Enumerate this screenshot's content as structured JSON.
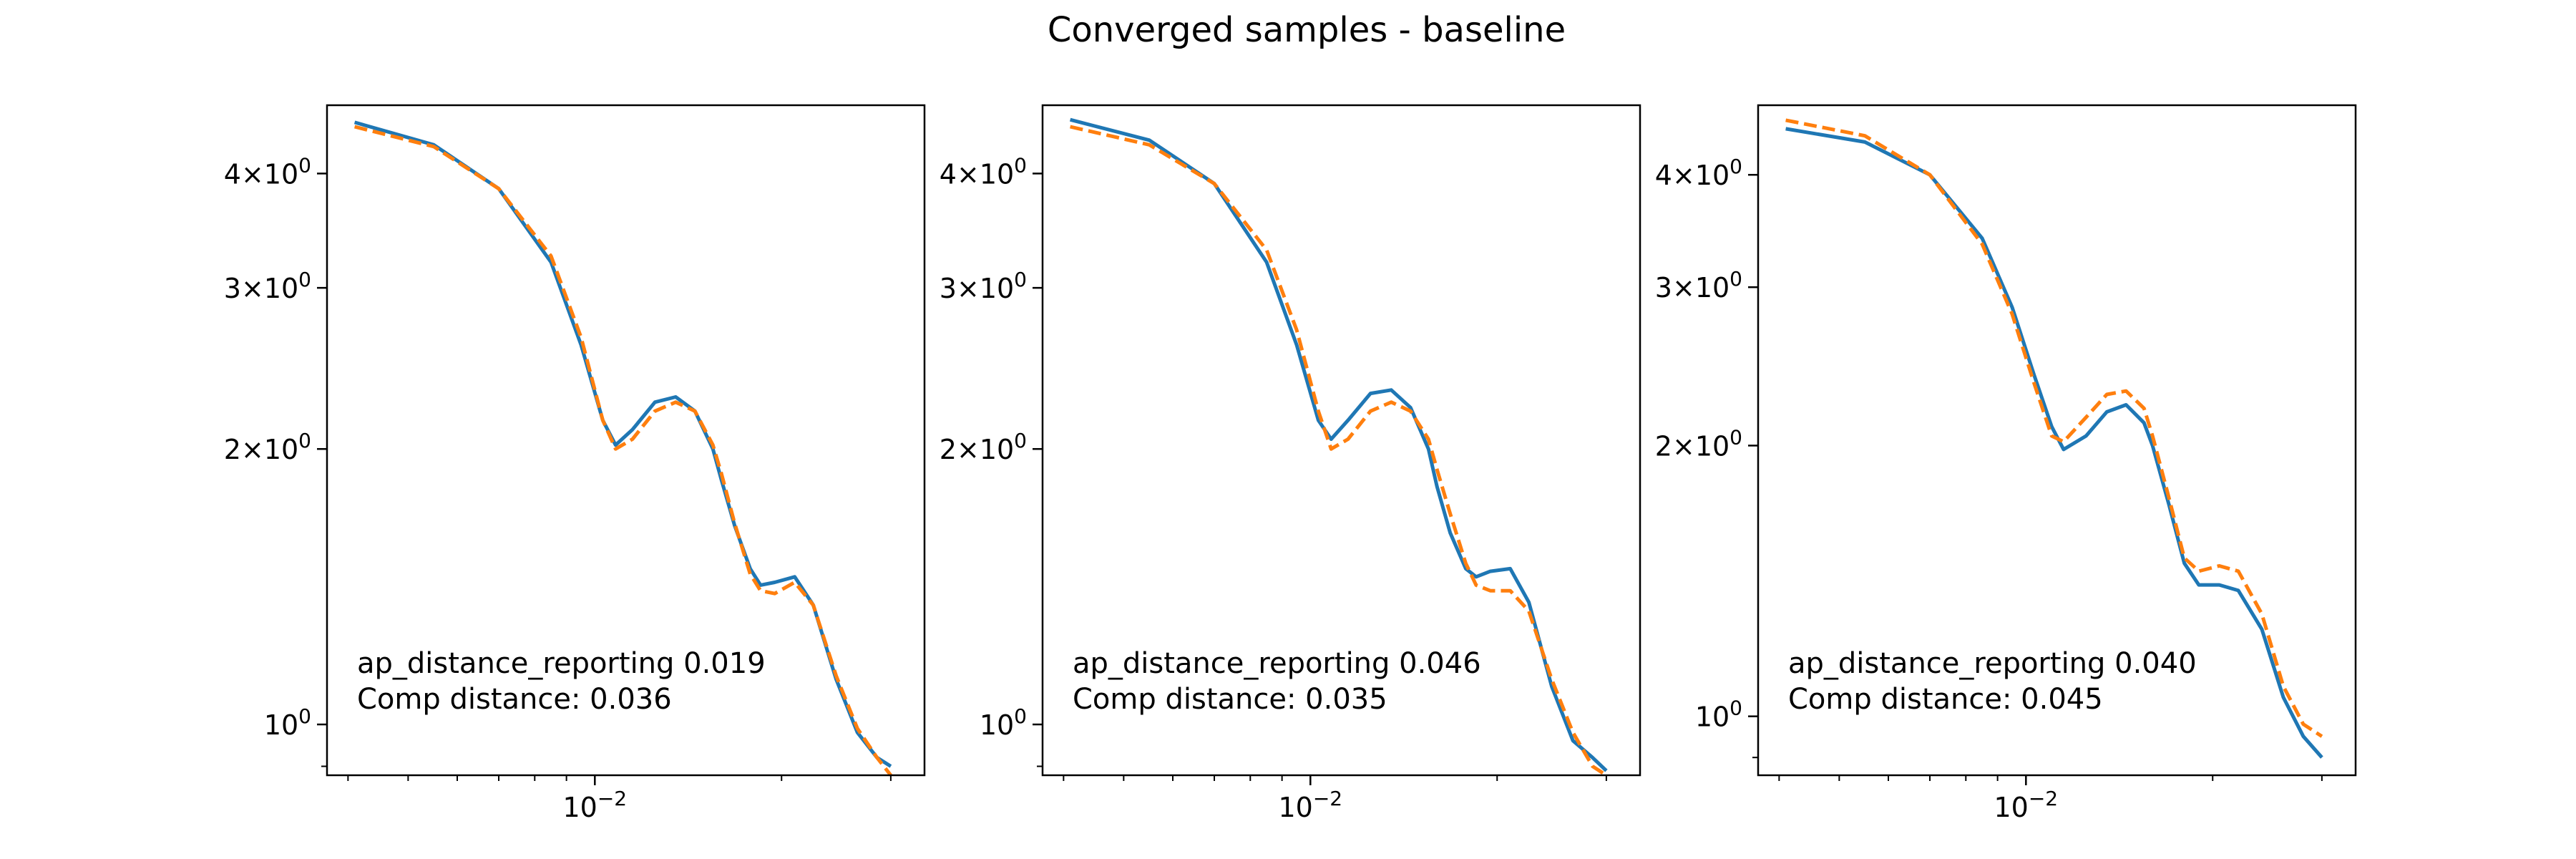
{
  "figure": {
    "suptitle": "Converged samples - baseline"
  },
  "colors": {
    "series_solid": "#1f77b4",
    "series_dashed": "#ff7f0e",
    "axes": "#000000",
    "background": "#ffffff"
  },
  "chart_data": [
    {
      "type": "line",
      "xscale": "log",
      "yscale": "log",
      "xlim": [
        0.0037,
        0.034
      ],
      "ylim": [
        0.88,
        4.75
      ],
      "xtick_labels": [
        {
          "value": 0.01,
          "base": "10",
          "exp": "−2"
        }
      ],
      "ytick_labels": [
        {
          "value": 4,
          "mant": "4",
          "base": "10",
          "exp": "0"
        },
        {
          "value": 3,
          "mant": "3",
          "base": "10",
          "exp": "0"
        },
        {
          "value": 2,
          "mant": "2",
          "base": "10",
          "exp": "0"
        },
        {
          "value": 1,
          "mant": "",
          "base": "10",
          "exp": "0"
        }
      ],
      "annotation": [
        "ap_distance_reporting 0.019",
        "Comp distance: 0.036"
      ],
      "series": [
        {
          "style": "solid",
          "x": [
            0.0041,
            0.0055,
            0.007,
            0.0085,
            0.0095,
            0.0103,
            0.0108,
            0.0115,
            0.0125,
            0.0135,
            0.0145,
            0.0155,
            0.016,
            0.0168,
            0.0178,
            0.0185,
            0.0195,
            0.021,
            0.0225,
            0.0245,
            0.0265,
            0.0285,
            0.03
          ],
          "y": [
            4.55,
            4.3,
            3.85,
            3.2,
            2.6,
            2.15,
            2.02,
            2.1,
            2.25,
            2.28,
            2.2,
            2.0,
            1.85,
            1.65,
            1.48,
            1.42,
            1.43,
            1.45,
            1.35,
            1.12,
            0.98,
            0.92,
            0.9
          ]
        },
        {
          "style": "dashed",
          "x": [
            0.0041,
            0.0055,
            0.007,
            0.0085,
            0.0095,
            0.0103,
            0.0108,
            0.0115,
            0.0125,
            0.0135,
            0.0145,
            0.0155,
            0.016,
            0.0168,
            0.0178,
            0.0185,
            0.0195,
            0.021,
            0.0225,
            0.0245,
            0.0265,
            0.0285,
            0.03
          ],
          "y": [
            4.5,
            4.28,
            3.85,
            3.25,
            2.65,
            2.15,
            2.0,
            2.05,
            2.2,
            2.25,
            2.2,
            2.02,
            1.88,
            1.66,
            1.46,
            1.4,
            1.39,
            1.43,
            1.35,
            1.13,
            0.99,
            0.92,
            0.88
          ]
        }
      ]
    },
    {
      "type": "line",
      "xscale": "log",
      "yscale": "log",
      "xlim": [
        0.0037,
        0.034
      ],
      "ylim": [
        0.88,
        4.75
      ],
      "xtick_labels": [
        {
          "value": 0.01,
          "base": "10",
          "exp": "−2"
        }
      ],
      "ytick_labels": [
        {
          "value": 4,
          "mant": "4",
          "base": "10",
          "exp": "0"
        },
        {
          "value": 3,
          "mant": "3",
          "base": "10",
          "exp": "0"
        },
        {
          "value": 2,
          "mant": "2",
          "base": "10",
          "exp": "0"
        },
        {
          "value": 1,
          "mant": "",
          "base": "10",
          "exp": "0"
        }
      ],
      "annotation": [
        "ap_distance_reporting 0.046",
        "Comp distance: 0.035"
      ],
      "series": [
        {
          "style": "solid",
          "x": [
            0.0041,
            0.0055,
            0.007,
            0.0085,
            0.0095,
            0.0103,
            0.0108,
            0.0115,
            0.0125,
            0.0135,
            0.0145,
            0.0155,
            0.016,
            0.0168,
            0.0178,
            0.0185,
            0.0195,
            0.021,
            0.0225,
            0.0245,
            0.0265,
            0.0285,
            0.03
          ],
          "y": [
            4.58,
            4.35,
            3.9,
            3.2,
            2.6,
            2.15,
            2.05,
            2.15,
            2.3,
            2.32,
            2.22,
            2.0,
            1.82,
            1.62,
            1.48,
            1.45,
            1.47,
            1.48,
            1.36,
            1.1,
            0.96,
            0.92,
            0.89
          ]
        },
        {
          "style": "dashed",
          "x": [
            0.0041,
            0.0055,
            0.007,
            0.0085,
            0.0095,
            0.0103,
            0.0108,
            0.0115,
            0.0125,
            0.0135,
            0.0145,
            0.0155,
            0.016,
            0.0168,
            0.0178,
            0.0185,
            0.0195,
            0.021,
            0.0225,
            0.0245,
            0.0265,
            0.0285,
            0.03
          ],
          "y": [
            4.5,
            4.3,
            3.9,
            3.3,
            2.7,
            2.2,
            2.0,
            2.05,
            2.2,
            2.25,
            2.2,
            2.05,
            1.9,
            1.7,
            1.5,
            1.42,
            1.4,
            1.4,
            1.33,
            1.12,
            0.98,
            0.9,
            0.88
          ]
        }
      ]
    },
    {
      "type": "line",
      "xscale": "log",
      "yscale": "log",
      "xlim": [
        0.0037,
        0.034
      ],
      "ylim": [
        0.86,
        4.78
      ],
      "xtick_labels": [
        {
          "value": 0.01,
          "base": "10",
          "exp": "−2"
        }
      ],
      "ytick_labels": [
        {
          "value": 4,
          "mant": "4",
          "base": "10",
          "exp": "0"
        },
        {
          "value": 3,
          "mant": "3",
          "base": "10",
          "exp": "0"
        },
        {
          "value": 2,
          "mant": "2",
          "base": "10",
          "exp": "0"
        },
        {
          "value": 1,
          "mant": "",
          "base": "10",
          "exp": "0"
        }
      ],
      "annotation": [
        "ap_distance_reporting 0.040",
        "Comp distance: 0.045"
      ],
      "series": [
        {
          "style": "solid",
          "x": [
            0.0041,
            0.0055,
            0.007,
            0.0085,
            0.0095,
            0.0103,
            0.011,
            0.0115,
            0.0125,
            0.0135,
            0.0145,
            0.0155,
            0.016,
            0.017,
            0.018,
            0.019,
            0.0205,
            0.022,
            0.024,
            0.026,
            0.028,
            0.03
          ],
          "y": [
            4.5,
            4.35,
            4.0,
            3.4,
            2.85,
            2.4,
            2.1,
            1.98,
            2.05,
            2.18,
            2.22,
            2.12,
            2.0,
            1.72,
            1.48,
            1.4,
            1.4,
            1.38,
            1.25,
            1.05,
            0.95,
            0.9
          ]
        },
        {
          "style": "dashed",
          "x": [
            0.0041,
            0.0055,
            0.007,
            0.0085,
            0.0095,
            0.0103,
            0.011,
            0.0115,
            0.0125,
            0.0135,
            0.0145,
            0.0155,
            0.016,
            0.017,
            0.018,
            0.019,
            0.0205,
            0.022,
            0.024,
            0.026,
            0.028,
            0.03
          ],
          "y": [
            4.6,
            4.42,
            4.0,
            3.35,
            2.8,
            2.35,
            2.05,
            2.02,
            2.15,
            2.28,
            2.3,
            2.2,
            2.05,
            1.75,
            1.5,
            1.45,
            1.47,
            1.45,
            1.3,
            1.08,
            0.98,
            0.95
          ]
        }
      ]
    }
  ]
}
